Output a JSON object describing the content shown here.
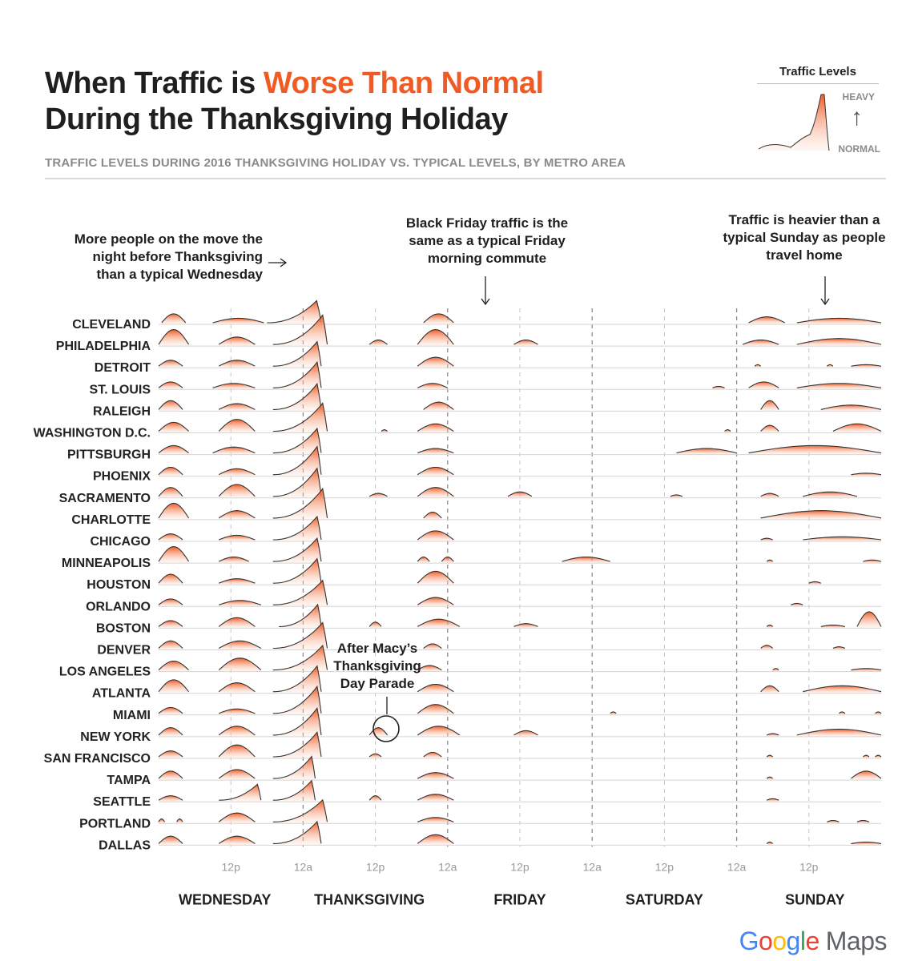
{
  "header": {
    "title_part1": "When Traffic is ",
    "title_accent": "Worse Than Normal",
    "title_line2": "During the Thanksgiving Holiday",
    "subtitle": "TRAFFIC LEVELS DURING 2016 THANKSGIVING HOLIDAY VS. TYPICAL LEVELS, BY METRO AREA"
  },
  "legend": {
    "title": "Traffic Levels",
    "heavy": "HEAVY",
    "normal": "NORMAL",
    "arrow": "↑"
  },
  "colors": {
    "accent": "#f15a22",
    "fill_top": "#f15a22",
    "fill_bottom": "#fde3d6",
    "line": "#333333",
    "gridline": "#d4d4d4",
    "divider": "#aaaaaa"
  },
  "brand": {
    "g1": "G",
    "g2": "o",
    "g3": "o",
    "g4": "g",
    "g5": "l",
    "g6": "e",
    "maps": "Maps"
  },
  "chart_data": {
    "type": "ridgeline",
    "x_range_hours": [
      0,
      120
    ],
    "x_tick_labels": [
      {
        "hour": 12,
        "label": "12p"
      },
      {
        "hour": 24,
        "label": "12a",
        "major": true
      },
      {
        "hour": 36,
        "label": "12p"
      },
      {
        "hour": 48,
        "label": "12a",
        "major": true
      },
      {
        "hour": 60,
        "label": "12p"
      },
      {
        "hour": 72,
        "label": "12a",
        "major": true
      },
      {
        "hour": 84,
        "label": "12p"
      },
      {
        "hour": 96,
        "label": "12a",
        "major": true
      },
      {
        "hour": 108,
        "label": "12p"
      }
    ],
    "days": [
      {
        "label": "WEDNESDAY",
        "center_hour": 11
      },
      {
        "label": "THANKSGIVING",
        "center_hour": 35
      },
      {
        "label": "FRIDAY",
        "center_hour": 60
      },
      {
        "label": "SATURDAY",
        "center_hour": 84
      },
      {
        "label": "SUNDAY",
        "center_hour": 109
      }
    ],
    "annotations": [
      {
        "text": [
          "More people on the move the",
          "night before Thanksgiving",
          "than a typical Wednesday"
        ],
        "arrow": "→"
      },
      {
        "text": [
          "Black Friday traffic is the",
          "same as a typical Friday",
          "morning commute"
        ],
        "arrow": "↓"
      },
      {
        "text": [
          "Traffic is heavier than a",
          "typical Sunday as people",
          "travel home"
        ],
        "arrow": "↓"
      },
      {
        "text": [
          "After Macy’s",
          "Thanksgiving",
          "Day Parade"
        ]
      }
    ],
    "metros": [
      {
        "name": "CLEVELAND",
        "segments": [
          [
            0.5,
            4.5,
            0.6
          ],
          [
            9,
            17.5,
            0.3
          ],
          [
            18,
            27,
            1.8
          ],
          [
            44,
            49,
            0.6
          ],
          [
            98,
            104,
            0.4
          ],
          [
            106,
            120,
            0.3
          ]
        ]
      },
      {
        "name": "PHILADELPHIA",
        "segments": [
          [
            0,
            5,
            1.0
          ],
          [
            10,
            16,
            0.5
          ],
          [
            19,
            28,
            2.4
          ],
          [
            35,
            38,
            0.3
          ],
          [
            43,
            49,
            1.0
          ],
          [
            59,
            63,
            0.3
          ],
          [
            97,
            103,
            0.3
          ],
          [
            106,
            120,
            0.4
          ]
        ]
      },
      {
        "name": "DETROIT",
        "segments": [
          [
            0,
            4,
            0.4
          ],
          [
            10,
            16,
            0.4
          ],
          [
            19,
            27,
            2.0
          ],
          [
            43,
            49,
            0.6
          ],
          [
            99,
            100,
            0.1
          ],
          [
            111,
            112,
            0.1
          ],
          [
            115,
            120,
            0.1
          ]
        ]
      },
      {
        "name": "ST. LOUIS",
        "segments": [
          [
            0,
            4,
            0.4
          ],
          [
            9,
            16,
            0.3
          ],
          [
            19,
            27,
            2.1
          ],
          [
            43,
            48,
            0.3
          ],
          [
            92,
            94,
            0.1
          ],
          [
            98,
            103,
            0.4
          ],
          [
            106,
            120,
            0.3
          ]
        ]
      },
      {
        "name": "RALEIGH",
        "segments": [
          [
            0,
            4,
            0.6
          ],
          [
            10,
            16,
            0.4
          ],
          [
            19,
            27,
            2.1
          ],
          [
            44,
            49,
            0.5
          ],
          [
            100,
            103,
            0.6
          ],
          [
            110,
            120,
            0.3
          ]
        ]
      },
      {
        "name": "WASHINGTON D.C.",
        "segments": [
          [
            0,
            5,
            0.6
          ],
          [
            10,
            16,
            0.8
          ],
          [
            19,
            28,
            2.3
          ],
          [
            37,
            38,
            0.1
          ],
          [
            43,
            49,
            0.5
          ],
          [
            94,
            95,
            0.1
          ],
          [
            100,
            103,
            0.4
          ],
          [
            112,
            120,
            0.5
          ]
        ]
      },
      {
        "name": "PITTSBURGH",
        "segments": [
          [
            0,
            5,
            0.5
          ],
          [
            9,
            16,
            0.4
          ],
          [
            19,
            27,
            2.0
          ],
          [
            43,
            49,
            0.3
          ],
          [
            86,
            96,
            0.3
          ],
          [
            98,
            120,
            0.5
          ]
        ]
      },
      {
        "name": "PHOENIX",
        "segments": [
          [
            0,
            4,
            0.5
          ],
          [
            10,
            16,
            0.4
          ],
          [
            19,
            27,
            2.3
          ],
          [
            43,
            49,
            0.5
          ],
          [
            115,
            120,
            0.1
          ]
        ]
      },
      {
        "name": "SACRAMENTO",
        "segments": [
          [
            0,
            4,
            0.6
          ],
          [
            10,
            16,
            0.8
          ],
          [
            19,
            27,
            2.3
          ],
          [
            35,
            38,
            0.2
          ],
          [
            43,
            49,
            0.6
          ],
          [
            58,
            62,
            0.3
          ],
          [
            85,
            87,
            0.1
          ],
          [
            100,
            103,
            0.2
          ],
          [
            107,
            116,
            0.3
          ]
        ]
      },
      {
        "name": "CHARLOTTE",
        "segments": [
          [
            0,
            5,
            1.0
          ],
          [
            10,
            16,
            0.5
          ],
          [
            19,
            28,
            2.4
          ],
          [
            44,
            47,
            0.4
          ],
          [
            100,
            120,
            0.5
          ]
        ]
      },
      {
        "name": "CHICAGO",
        "segments": [
          [
            0,
            4,
            0.4
          ],
          [
            10,
            16,
            0.3
          ],
          [
            19,
            27,
            1.9
          ],
          [
            43,
            49,
            0.6
          ],
          [
            100,
            102,
            0.1
          ],
          [
            107,
            120,
            0.2
          ]
        ]
      },
      {
        "name": "MINNEAPOLIS",
        "segments": [
          [
            0,
            5,
            1.0
          ],
          [
            10,
            15,
            0.3
          ],
          [
            19,
            27,
            1.9
          ],
          [
            43,
            45,
            0.3
          ],
          [
            47,
            49,
            0.3
          ],
          [
            67,
            75,
            0.3
          ],
          [
            101,
            102,
            0.1
          ],
          [
            117,
            120,
            0.1
          ]
        ]
      },
      {
        "name": "HOUSTON",
        "segments": [
          [
            0,
            4,
            0.6
          ],
          [
            10,
            16,
            0.3
          ],
          [
            19,
            27,
            2.0
          ],
          [
            43,
            49,
            0.8
          ],
          [
            108,
            110,
            0.1
          ]
        ]
      },
      {
        "name": "ORLANDO",
        "segments": [
          [
            0,
            4,
            0.4
          ],
          [
            10,
            17,
            0.3
          ],
          [
            19,
            28,
            2.0
          ],
          [
            43,
            49,
            0.5
          ],
          [
            105,
            107,
            0.1
          ]
        ]
      },
      {
        "name": "BOSTON",
        "segments": [
          [
            0,
            4,
            0.4
          ],
          [
            10,
            16,
            0.6
          ],
          [
            20,
            27,
            1.8
          ],
          [
            35,
            37,
            0.3
          ],
          [
            43,
            50,
            0.5
          ],
          [
            59,
            63,
            0.2
          ],
          [
            101,
            102,
            0.1
          ],
          [
            110,
            114,
            0.1
          ],
          [
            116,
            120,
            1.0
          ]
        ]
      },
      {
        "name": "DENVER",
        "segments": [
          [
            0,
            4,
            0.5
          ],
          [
            10,
            17,
            0.5
          ],
          [
            19,
            28,
            2.1
          ],
          [
            44,
            47,
            0.3
          ],
          [
            100,
            102,
            0.2
          ],
          [
            112,
            114,
            0.1
          ]
        ]
      },
      {
        "name": "LOS ANGELES",
        "segments": [
          [
            0,
            5,
            0.6
          ],
          [
            10,
            17,
            0.8
          ],
          [
            19,
            28,
            2.0
          ],
          [
            43,
            47,
            0.3
          ],
          [
            102,
            103,
            0.1
          ],
          [
            115,
            120,
            0.1
          ]
        ]
      },
      {
        "name": "ATLANTA",
        "segments": [
          [
            0,
            5,
            0.8
          ],
          [
            10,
            16,
            0.6
          ],
          [
            19,
            27,
            2.1
          ],
          [
            43,
            49,
            0.5
          ],
          [
            100,
            103,
            0.4
          ],
          [
            107,
            120,
            0.4
          ]
        ]
      },
      {
        "name": "MIAMI",
        "segments": [
          [
            0,
            4,
            0.4
          ],
          [
            10,
            16,
            0.3
          ],
          [
            19,
            27,
            2.2
          ],
          [
            43,
            49,
            0.6
          ],
          [
            75,
            76,
            0.1
          ],
          [
            113,
            114,
            0.1
          ],
          [
            119,
            120,
            0.1
          ]
        ]
      },
      {
        "name": "NEW YORK",
        "segments": [
          [
            0,
            4,
            0.5
          ],
          [
            10,
            16,
            0.6
          ],
          [
            19,
            27,
            2.2
          ],
          [
            35,
            38,
            0.5
          ],
          [
            43,
            50,
            0.6
          ],
          [
            59,
            63,
            0.3
          ],
          [
            101,
            103,
            0.1
          ],
          [
            106,
            120,
            0.4
          ]
        ]
      },
      {
        "name": "SAN FRANCISCO",
        "segments": [
          [
            0,
            4,
            0.4
          ],
          [
            10,
            16,
            0.8
          ],
          [
            19,
            27,
            2.0
          ],
          [
            35,
            37,
            0.2
          ],
          [
            44,
            47,
            0.3
          ],
          [
            101,
            102,
            0.1
          ],
          [
            117,
            118,
            0.1
          ],
          [
            119,
            120,
            0.1
          ]
        ]
      },
      {
        "name": "TAMPA",
        "segments": [
          [
            0,
            4,
            0.5
          ],
          [
            10,
            16,
            0.6
          ],
          [
            19,
            26,
            1.8
          ],
          [
            43,
            49,
            0.4
          ],
          [
            101,
            102,
            0.1
          ],
          [
            115,
            120,
            0.5
          ]
        ]
      },
      {
        "name": "SEATTLE",
        "segments": [
          [
            0,
            4,
            0.3
          ],
          [
            10,
            17,
            1.3
          ],
          [
            19,
            26,
            1.6
          ],
          [
            35,
            37,
            0.3
          ],
          [
            43,
            49,
            0.4
          ],
          [
            101,
            103,
            0.1
          ]
        ]
      },
      {
        "name": "PORTLAND",
        "segments": [
          [
            0,
            1,
            0.2
          ],
          [
            3,
            4,
            0.2
          ],
          [
            10,
            16,
            0.6
          ],
          [
            19,
            28,
            1.8
          ],
          [
            43,
            49,
            0.3
          ],
          [
            111,
            113,
            0.1
          ],
          [
            116,
            118,
            0.1
          ]
        ]
      },
      {
        "name": "DALLAS",
        "segments": [
          [
            0,
            4,
            0.5
          ],
          [
            10,
            16,
            0.5
          ],
          [
            19,
            27,
            1.8
          ],
          [
            43,
            49,
            0.6
          ],
          [
            101,
            102,
            0.1
          ],
          [
            115,
            120,
            0.1
          ]
        ]
      }
    ]
  }
}
